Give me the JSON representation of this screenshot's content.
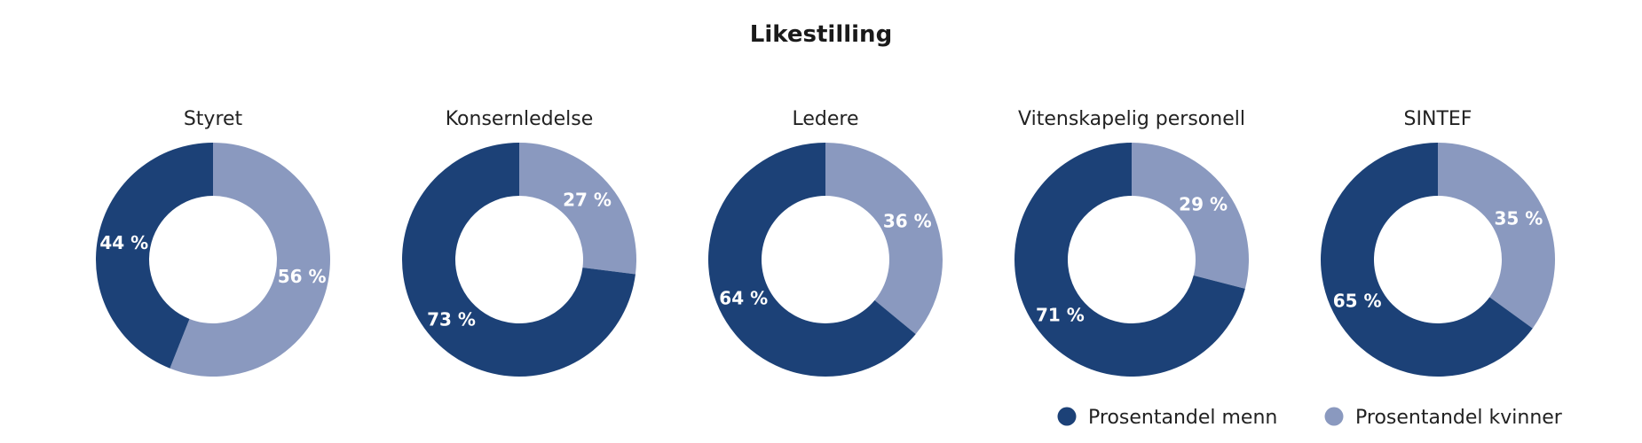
{
  "chart_data": {
    "type": "pie",
    "title": "Likestilling",
    "variant": "donut",
    "series": [
      {
        "name": "Prosentandel menn",
        "color": "#1c4177"
      },
      {
        "name": "Prosentandel kvinner",
        "color": "#8a99bf"
      }
    ],
    "charts": [
      {
        "title": "Styret",
        "values": [
          44,
          56
        ],
        "labels": [
          "44 %",
          "56 %"
        ]
      },
      {
        "title": "Konsernledelse",
        "values": [
          73,
          27
        ],
        "labels": [
          "73 %",
          "27 %"
        ]
      },
      {
        "title": "Ledere",
        "values": [
          64,
          36
        ],
        "labels": [
          "64 %",
          "36 %"
        ]
      },
      {
        "title": "Vitenskapelig personell",
        "values": [
          71,
          29
        ],
        "labels": [
          "71 %",
          "29 %"
        ]
      },
      {
        "title": "SINTEF",
        "values": [
          65,
          35
        ],
        "labels": [
          "65 %",
          "35 %"
        ]
      }
    ],
    "legend_position": "bottom-right"
  }
}
